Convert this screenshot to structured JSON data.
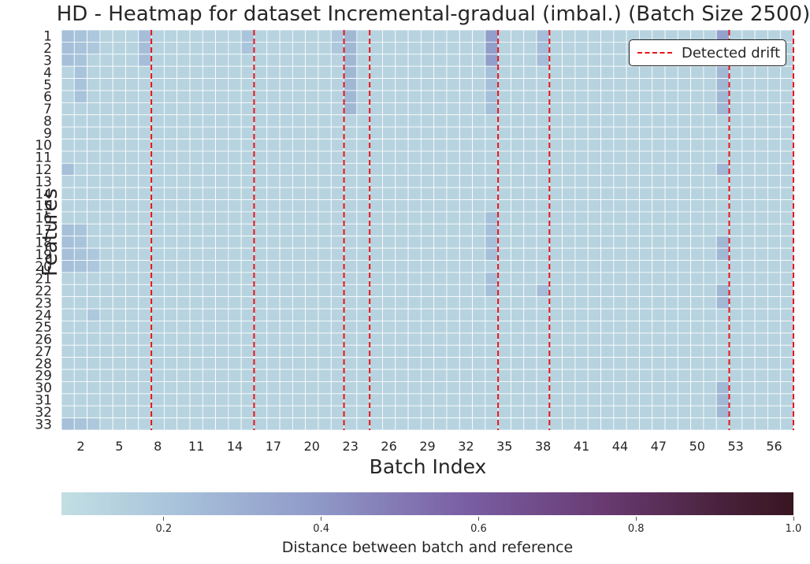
{
  "chart_data": {
    "type": "heatmap",
    "title": "HD - Heatmap for dataset Incremental-gradual (imbal.) (Batch Size 2500)",
    "xlabel": "Batch Index",
    "ylabel": "Features",
    "x_tick_labels": [
      "2",
      "5",
      "8",
      "11",
      "14",
      "17",
      "20",
      "23",
      "26",
      "29",
      "32",
      "35",
      "38",
      "41",
      "44",
      "47",
      "50",
      "53",
      "56"
    ],
    "y_tick_labels": [
      "1",
      "2",
      "3",
      "4",
      "5",
      "6",
      "7",
      "8",
      "9",
      "10",
      "11",
      "12",
      "13",
      "14",
      "15",
      "16",
      "17",
      "18",
      "19",
      "20",
      "21",
      "22",
      "23",
      "24",
      "25",
      "26",
      "27",
      "28",
      "29",
      "30",
      "31",
      "32",
      "33"
    ],
    "n_batches": 57,
    "n_features": 33,
    "base_value": 0.14,
    "hot_columns": [
      {
        "batch": 1,
        "value": 0.24,
        "rows": [
          1,
          2,
          3,
          12,
          17,
          18,
          19,
          20,
          33
        ]
      },
      {
        "batch": 2,
        "value": 0.23,
        "rows": [
          1,
          2,
          3,
          4,
          5,
          6,
          17,
          18,
          19,
          20,
          33
        ]
      },
      {
        "batch": 3,
        "value": 0.2,
        "rows": [
          1,
          2,
          19,
          20,
          24,
          33
        ]
      },
      {
        "batch": 7,
        "value": 0.25,
        "rows": [
          1,
          2,
          3
        ]
      },
      {
        "batch": 15,
        "value": 0.22,
        "rows": [
          1,
          2
        ]
      },
      {
        "batch": 22,
        "value": 0.2,
        "rows": [
          1,
          2
        ]
      },
      {
        "batch": 23,
        "value": 0.27,
        "rows": [
          1,
          2,
          3,
          4,
          5,
          6,
          7
        ]
      },
      {
        "batch": 34,
        "value": 0.36,
        "rows": [
          1,
          2,
          3
        ]
      },
      {
        "batch": 34,
        "value": 0.24,
        "rows": [
          4,
          5,
          6,
          7,
          16,
          17,
          18,
          19,
          21,
          22
        ]
      },
      {
        "batch": 38,
        "value": 0.25,
        "rows": [
          1,
          2,
          3,
          22
        ]
      },
      {
        "batch": 52,
        "value": 0.35,
        "rows": [
          1,
          2
        ]
      },
      {
        "batch": 52,
        "value": 0.27,
        "rows": [
          3,
          4,
          5,
          6,
          7,
          12,
          18,
          19,
          22,
          23,
          30,
          31,
          32
        ]
      }
    ],
    "detected_drift_batches": [
      8,
      16,
      23,
      25,
      35,
      39,
      53,
      58
    ],
    "legend": {
      "label": "Detected drift",
      "placement": "upper right"
    },
    "colorbar": {
      "label": "Distance between batch and reference",
      "range": [
        0.07,
        1.0
      ],
      "ticks": [
        "0.2",
        "0.4",
        "0.6",
        "0.8",
        "1.0"
      ],
      "colormap": [
        "#c2dfe3",
        "#a9c4db",
        "#8f99c8",
        "#7a5fa4",
        "#67396f",
        "#48223c",
        "#381521"
      ]
    }
  },
  "colors": {
    "drift_line": "#e8151a",
    "grid": "#ffffff"
  }
}
